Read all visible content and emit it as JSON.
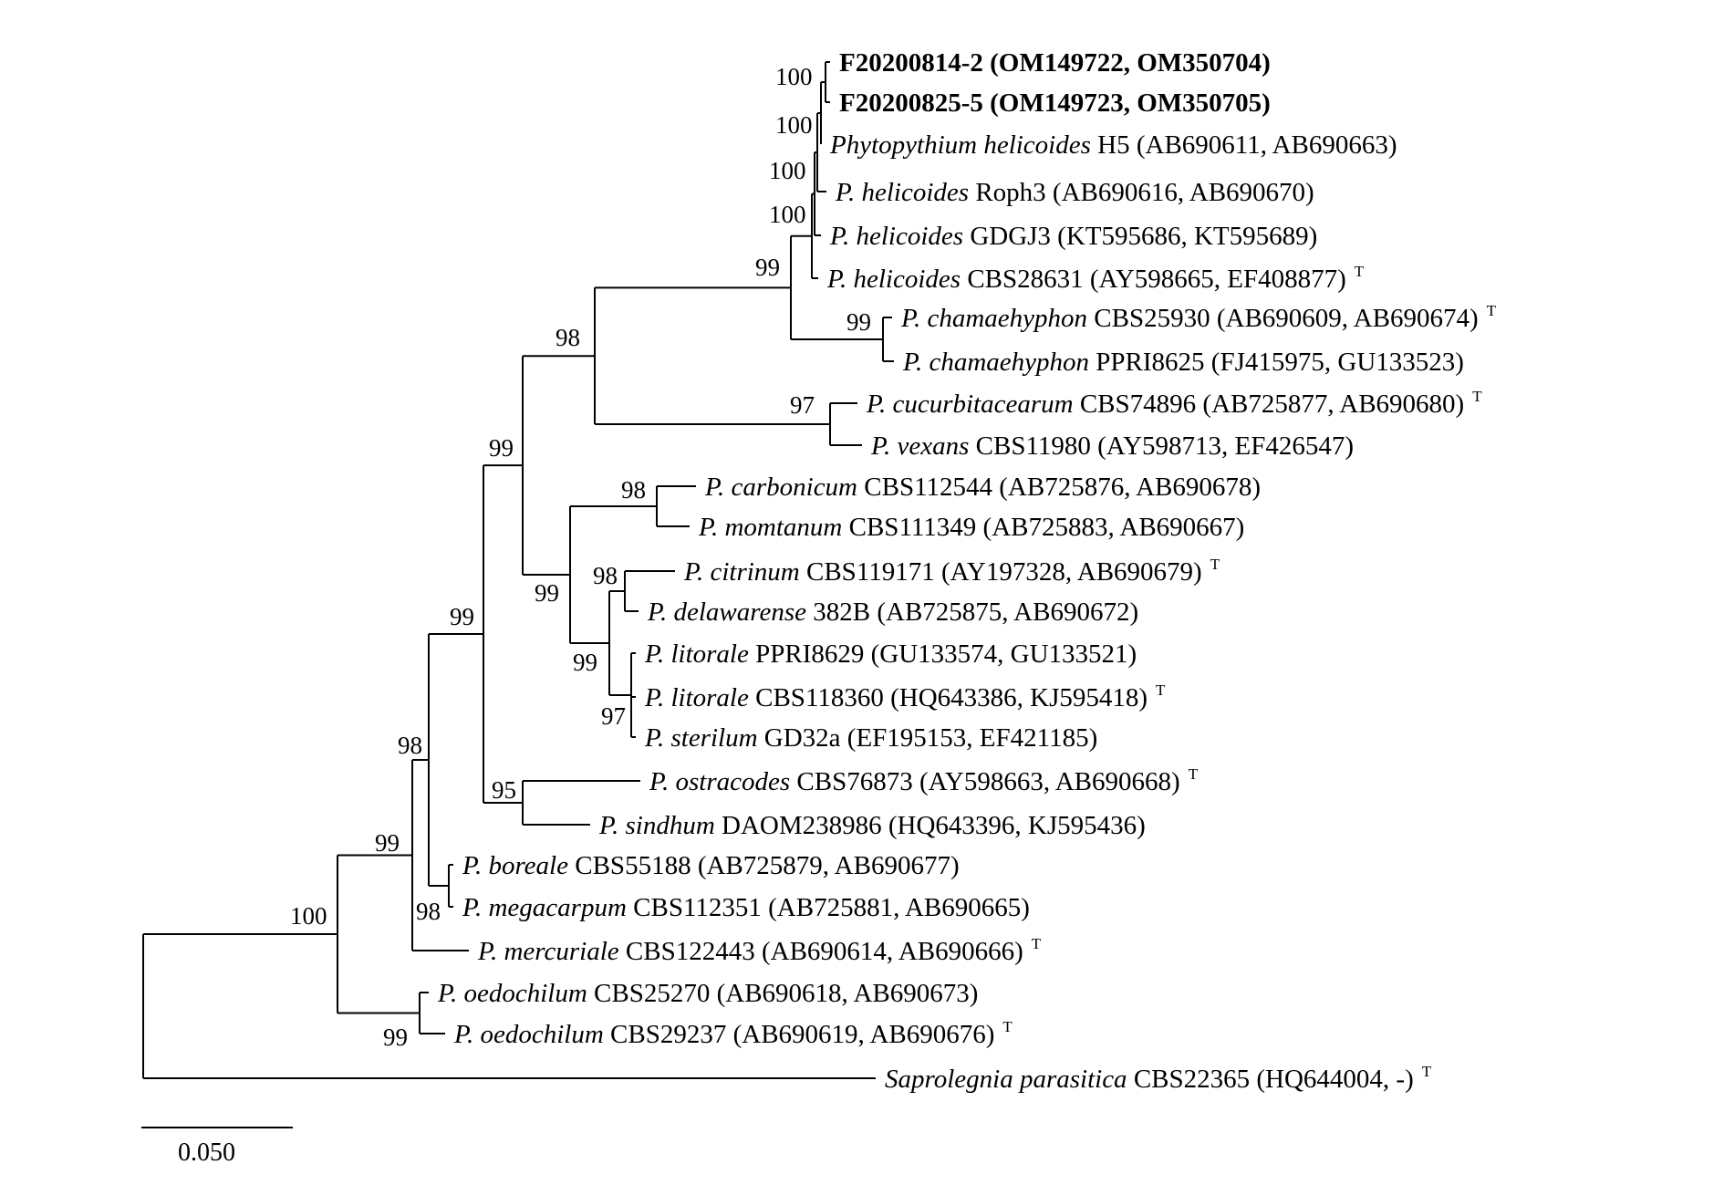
{
  "scale_bar": {
    "label": "0.050"
  },
  "taxa": [
    {
      "id": "t1",
      "name": "",
      "rest": "F20200814-2 (OM149722, OM350704)",
      "sup": "",
      "bold": true
    },
    {
      "id": "t2",
      "name": "",
      "rest": "F20200825-5 (OM149723, OM350705)",
      "sup": "",
      "bold": true
    },
    {
      "id": "t3",
      "name": "Phytopythium helicoides",
      "rest": " H5 (AB690611, AB690663)",
      "sup": ""
    },
    {
      "id": "t4",
      "name": "P. helicoides",
      "rest": " Roph3 (AB690616, AB690670)",
      "sup": ""
    },
    {
      "id": "t5",
      "name": "P. helicoides",
      "rest": " GDGJ3 (KT595686, KT595689)",
      "sup": ""
    },
    {
      "id": "t6",
      "name": "P. helicoides",
      "rest": " CBS28631 (AY598665, EF408877)",
      "sup": "T"
    },
    {
      "id": "t7",
      "name": "P. chamaehyphon",
      "rest": " CBS25930 (AB690609, AB690674)",
      "sup": "T"
    },
    {
      "id": "t8",
      "name": "P. chamaehyphon",
      "rest": " PPRI8625 (FJ415975, GU133523)",
      "sup": ""
    },
    {
      "id": "t9",
      "name": "P. cucurbitacearum",
      "rest": " CBS74896 (AB725877, AB690680)",
      "sup": "T"
    },
    {
      "id": "t10",
      "name": "P. vexans",
      "rest": " CBS11980 (AY598713, EF426547)",
      "sup": ""
    },
    {
      "id": "t11",
      "name": "P. carbonicum",
      "rest": " CBS112544 (AB725876, AB690678)",
      "sup": ""
    },
    {
      "id": "t12",
      "name": "P. momtanum",
      "rest": " CBS111349 (AB725883, AB690667)",
      "sup": ""
    },
    {
      "id": "t13",
      "name": "P. citrinum",
      "rest": " CBS119171 (AY197328, AB690679)",
      "sup": "T"
    },
    {
      "id": "t14",
      "name": "P. delawarense",
      "rest": " 382B (AB725875, AB690672)",
      "sup": ""
    },
    {
      "id": "t15",
      "name": "P. litorale",
      "rest": " PPRI8629 (GU133574, GU133521)",
      "sup": ""
    },
    {
      "id": "t16",
      "name": "P. litorale",
      "rest": " CBS118360 (HQ643386, KJ595418)",
      "sup": "T"
    },
    {
      "id": "t17",
      "name": "P. sterilum",
      "rest": " GD32a (EF195153, EF421185)",
      "sup": ""
    },
    {
      "id": "t18",
      "name": "P. ostracodes",
      "rest": " CBS76873 (AY598663, AB690668)",
      "sup": "T"
    },
    {
      "id": "t19",
      "name": "P. sindhum",
      "rest": " DAOM238986 (HQ643396, KJ595436)",
      "sup": ""
    },
    {
      "id": "t20",
      "name": "P. boreale",
      "rest": " CBS55188 (AB725879, AB690677)",
      "sup": ""
    },
    {
      "id": "t21",
      "name": "P. megacarpum",
      "rest": " CBS112351 (AB725881, AB690665)",
      "sup": ""
    },
    {
      "id": "t22",
      "name": "P. mercuriale",
      "rest": " CBS122443 (AB690614, AB690666)",
      "sup": "T"
    },
    {
      "id": "t23",
      "name": "P. oedochilum",
      "rest": " CBS25270 (AB690618, AB690673)",
      "sup": ""
    },
    {
      "id": "t24",
      "name": "P. oedochilum",
      "rest": " CBS29237 (AB690619, AB690676)",
      "sup": "T"
    },
    {
      "id": "t25",
      "name": "Saprolegnia parasitica",
      "rest": " CBS22365 (HQ644004, -)",
      "sup": "T"
    }
  ],
  "bootstrap": [
    {
      "node": "n_t1_t2",
      "value": "100"
    },
    {
      "node": "n_t3",
      "value": "100"
    },
    {
      "node": "n_t4",
      "value": "100"
    },
    {
      "node": "n_t5",
      "value": "100"
    },
    {
      "node": "n_heli_cham",
      "value": "99"
    },
    {
      "node": "n_cham",
      "value": "99"
    },
    {
      "node": "n_upper",
      "value": "98"
    },
    {
      "node": "n_cucu_vex",
      "value": "97"
    },
    {
      "node": "n_big",
      "value": "99"
    },
    {
      "node": "n_carb_mom",
      "value": "98"
    },
    {
      "node": "n_citr_dela",
      "value": "98"
    },
    {
      "node": "n_mid",
      "value": "99"
    },
    {
      "node": "n_citr_lit",
      "value": "99"
    },
    {
      "node": "n_lit_ster",
      "value": "97"
    },
    {
      "node": "n_ost_sind",
      "value": "95"
    },
    {
      "node": "n_all_core",
      "value": "99"
    },
    {
      "node": "n_core_bor",
      "value": "98"
    },
    {
      "node": "n_bor_meg",
      "value": "98"
    },
    {
      "node": "n_core_oed",
      "value": "99"
    },
    {
      "node": "n_oed",
      "value": "99"
    },
    {
      "node": "n_root",
      "value": "100"
    }
  ]
}
